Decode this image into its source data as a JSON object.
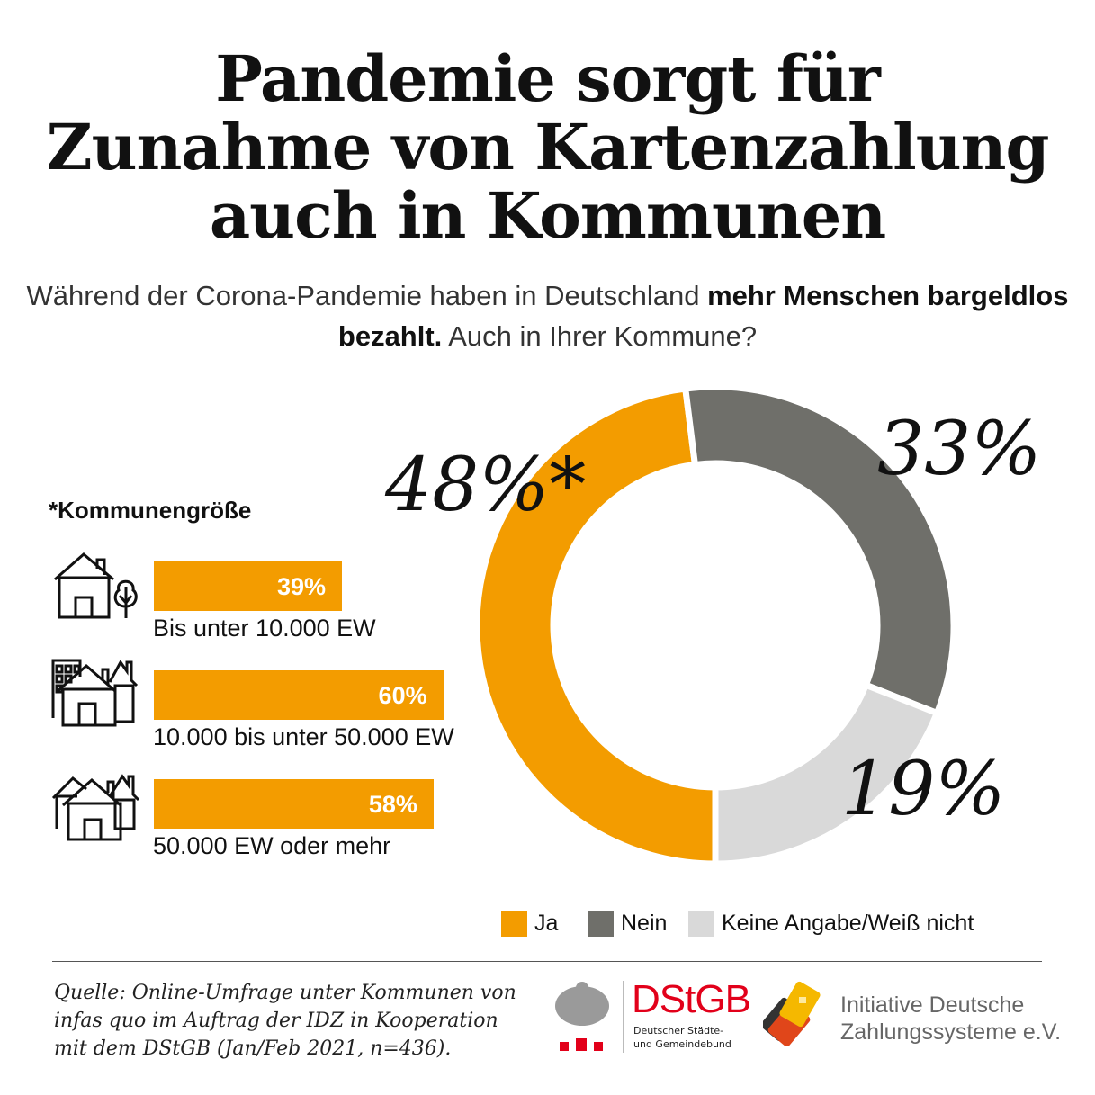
{
  "title": [
    "Pandemie sorgt für",
    "Zunahme von Kartenzahlung",
    "auch in Kommunen"
  ],
  "subtitle": {
    "part1": "Während der Corona-Pandemie haben in Deutschland ",
    "bold": "mehr Menschen bargeldlos bezahlt.",
    "part2": " Auch in Ihrer Kommune?"
  },
  "chart_data": [
    {
      "type": "pie",
      "variant": "donut",
      "categories": [
        "Ja",
        "Nein",
        "Keine Angabe/Weiß nicht"
      ],
      "values": [
        48,
        33,
        19
      ],
      "labels": [
        "48%*",
        "33%",
        "19%"
      ],
      "colors": [
        "#f39c00",
        "#6f6f6a",
        "#d9d9d9"
      ],
      "legend": "bottom-right"
    },
    {
      "type": "bar",
      "orientation": "horizontal",
      "title": "*Kommunengröße",
      "categories": [
        "Bis unter 10.000 EW",
        "10.000 bis unter 50.000 EW",
        "50.000 EW oder mehr"
      ],
      "values": [
        39,
        60,
        58
      ],
      "labels": [
        "39%",
        "60%",
        "58%"
      ],
      "icons": [
        "small-town-house-tree-icon",
        "mid-town-houses-building-icon",
        "city-houses-icon"
      ],
      "color": "#f39c00"
    }
  ],
  "source": [
    "Quelle: Online-Umfrage unter Kommunen von",
    "infas quo im Auftrag der IDZ in Kooperation",
    "mit dem DStGB (Jan/Feb 2021, n=436)."
  ],
  "logos": {
    "dstgb": {
      "name": "DStGB",
      "line1": "Deutscher Städte-",
      "line2": "und Gemeindebund",
      "color": "#e2001a"
    },
    "idz": {
      "line1": "Initiative Deutsche",
      "line2": "Zahlungssysteme e.V."
    }
  }
}
